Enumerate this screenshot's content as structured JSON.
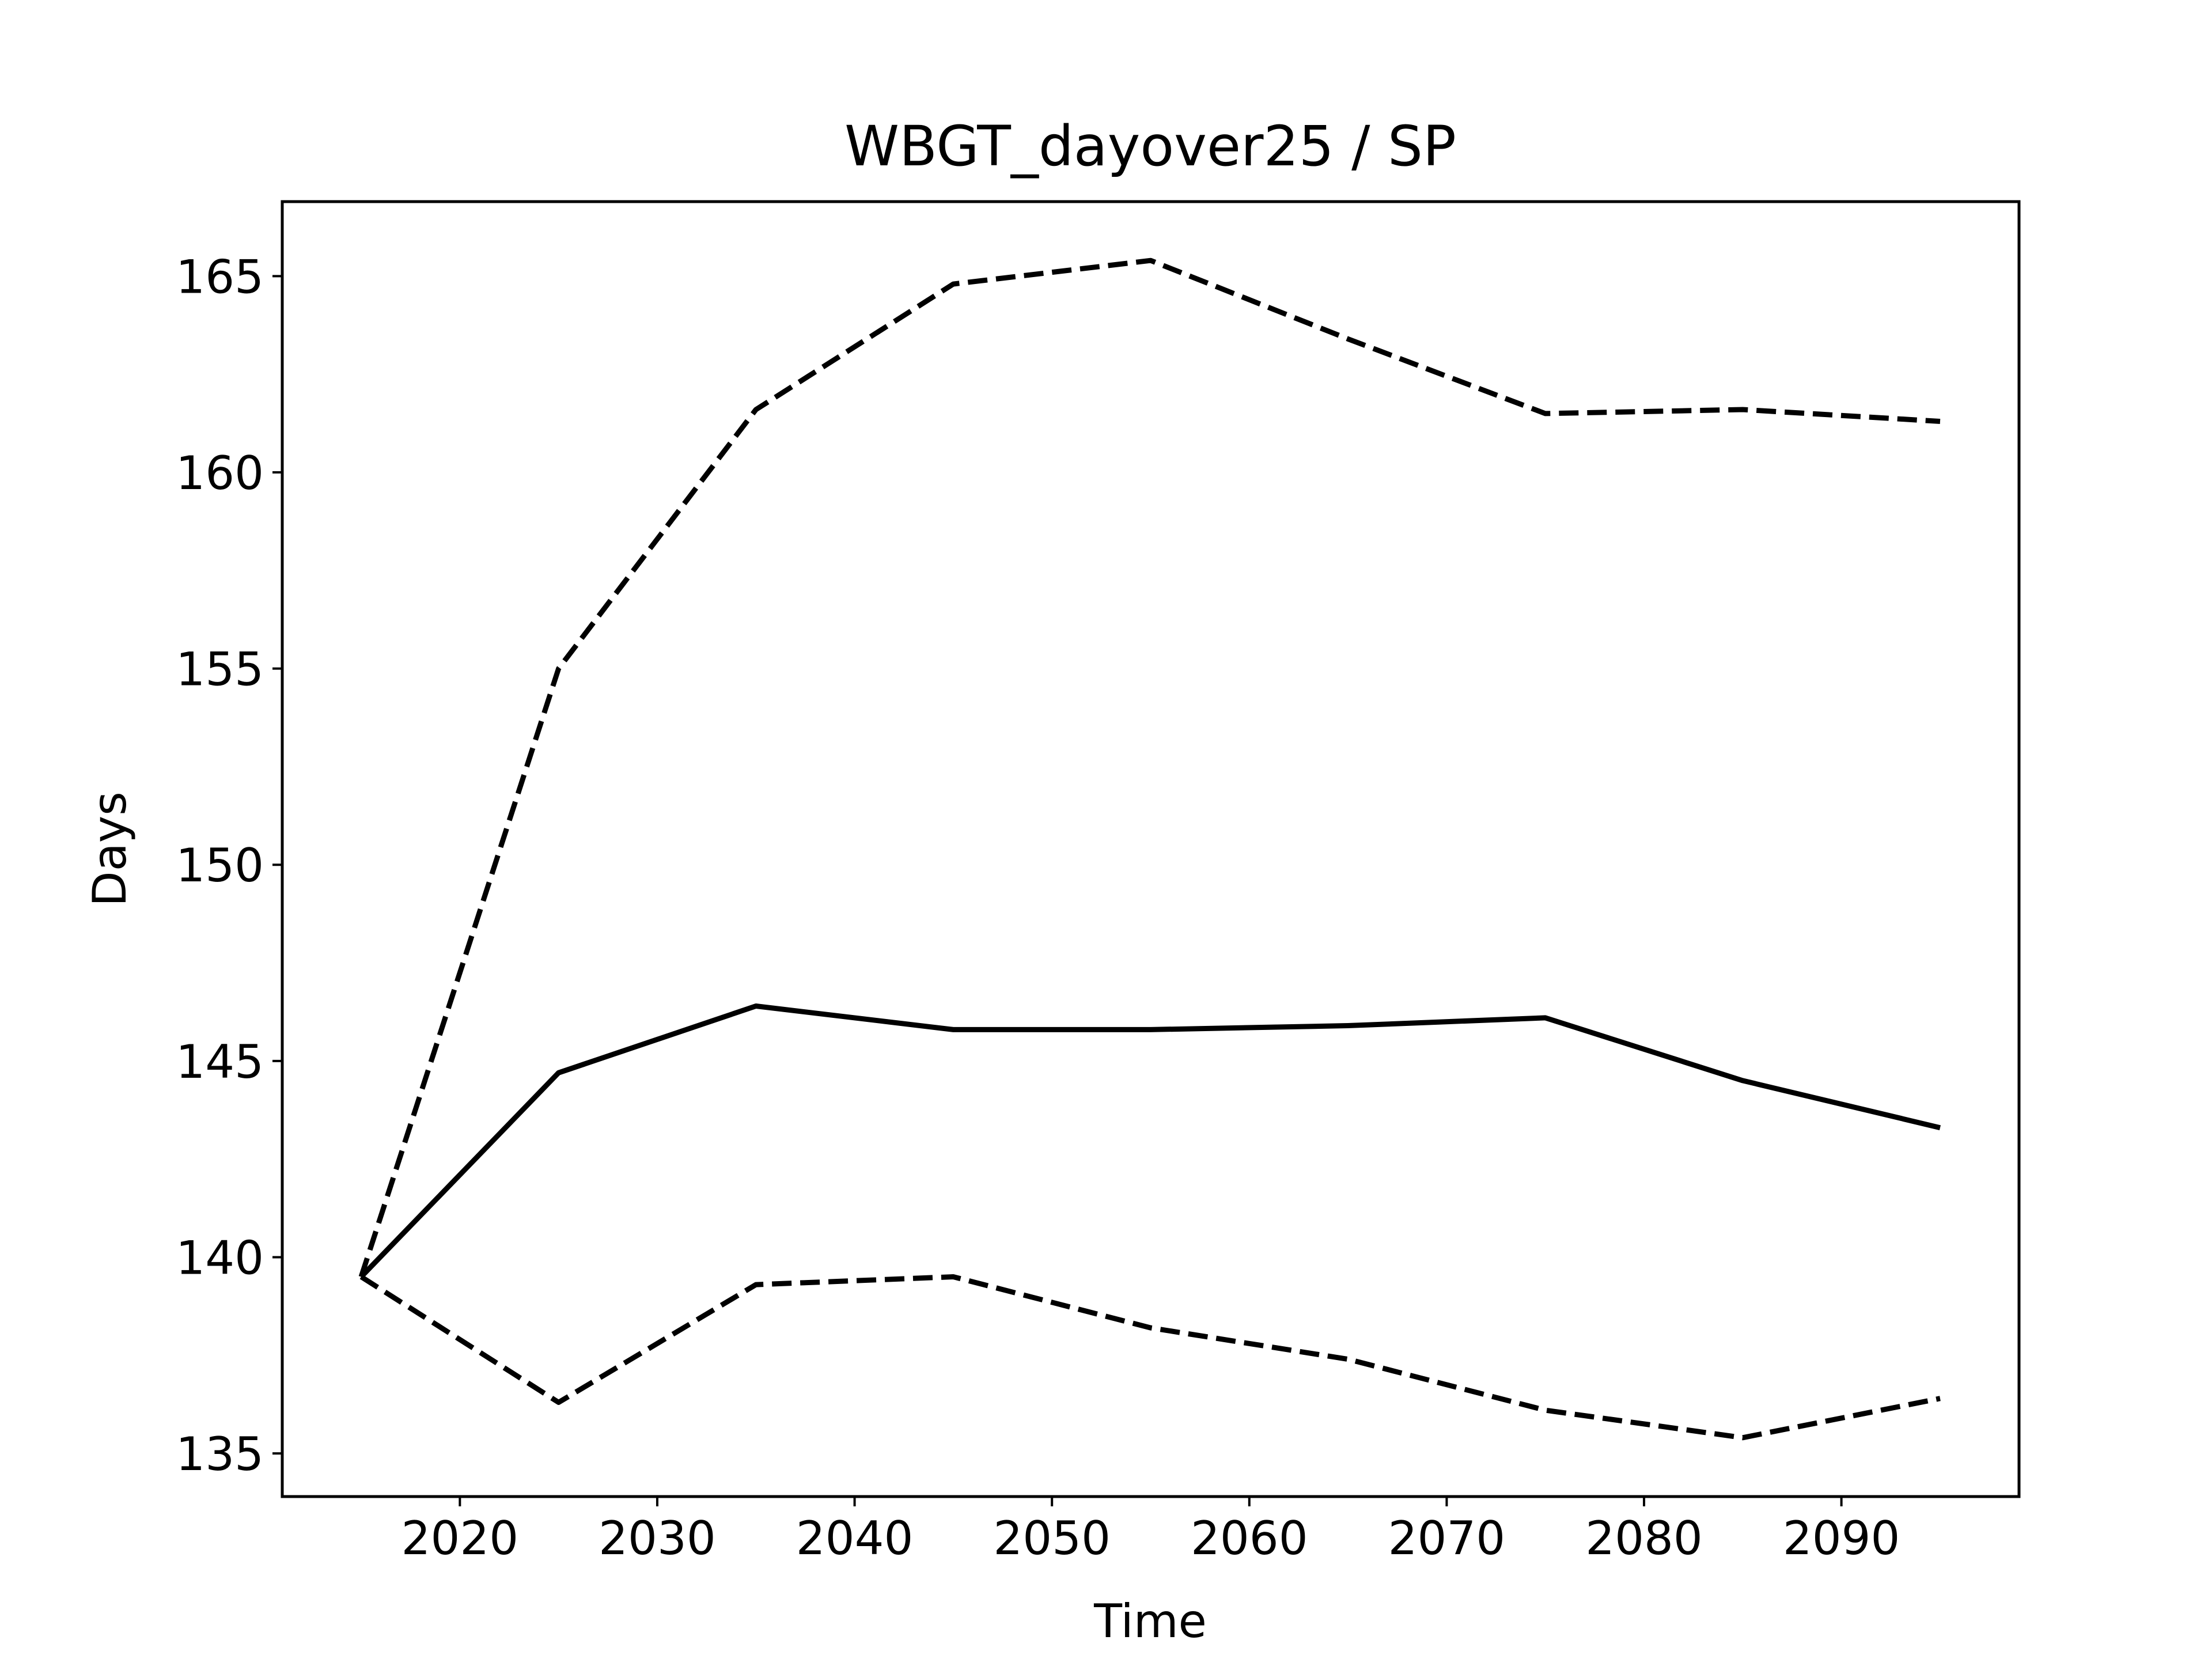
{
  "chart_data": {
    "type": "line",
    "title": "WBGT_dayover25 / SP",
    "xlabel": "Time",
    "ylabel": "Days",
    "xlim": [
      2011,
      2099
    ],
    "ylim": [
      133.9,
      166.9
    ],
    "xticks": [
      2020,
      2030,
      2040,
      2050,
      2060,
      2070,
      2080,
      2090
    ],
    "yticks": [
      135,
      140,
      145,
      150,
      155,
      160,
      165
    ],
    "grid": false,
    "x": [
      2015,
      2025,
      2035,
      2045,
      2055,
      2065,
      2075,
      2085,
      2095
    ],
    "series": [
      {
        "style": "dashed",
        "color": "#000000",
        "values": [
          139.5,
          155.0,
          161.6,
          164.8,
          165.4,
          163.4,
          161.5,
          161.6,
          161.3
        ]
      },
      {
        "style": "solid",
        "color": "#000000",
        "values": [
          139.5,
          144.7,
          146.4,
          145.8,
          145.8,
          145.9,
          146.1,
          144.5,
          143.3
        ]
      },
      {
        "style": "dashed",
        "color": "#000000",
        "values": [
          139.5,
          136.3,
          139.3,
          139.5,
          138.2,
          137.4,
          136.1,
          135.4,
          136.4
        ]
      }
    ]
  }
}
